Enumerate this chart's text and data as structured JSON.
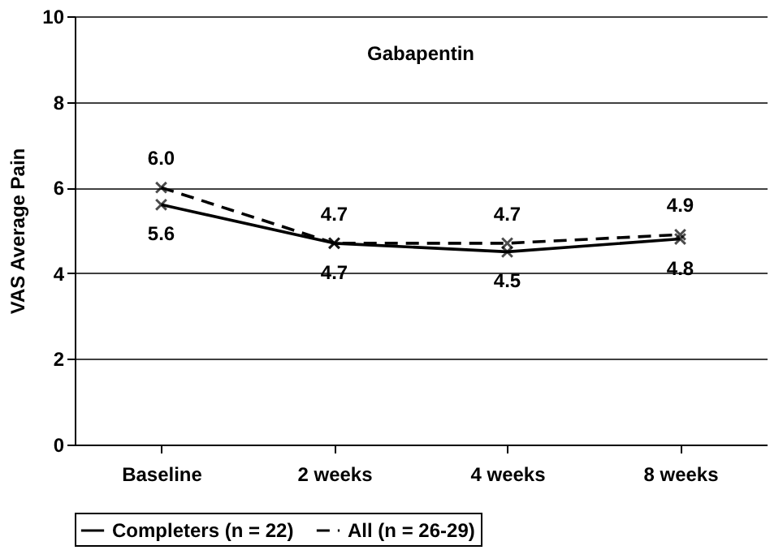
{
  "chart_data": {
    "type": "line",
    "title": "Gabapentin",
    "ylabel": "VAS Average Pain",
    "categories": [
      "Baseline",
      "2 weeks",
      "4 weeks",
      "8 weeks"
    ],
    "series": [
      {
        "name": "Completers (n = 22)",
        "color": "#000000",
        "values": [
          5.6,
          4.7,
          4.5,
          4.8
        ],
        "value_labels": [
          "5.6",
          "4.7",
          "4.5",
          "4.8"
        ],
        "marker": "cross",
        "line_style": "solid"
      },
      {
        "name": "All (n = 26-29)",
        "color": "#000000",
        "values": [
          6.0,
          4.7,
          4.7,
          4.9
        ],
        "value_labels": [
          "6.0",
          "4.7",
          "4.7",
          "4.9"
        ],
        "marker": "cross",
        "line_style": "dashed"
      }
    ],
    "ylim": [
      0,
      10
    ],
    "yticks": [
      0,
      2,
      4,
      6,
      8,
      10
    ],
    "grid": "y",
    "legend": "bottom"
  }
}
